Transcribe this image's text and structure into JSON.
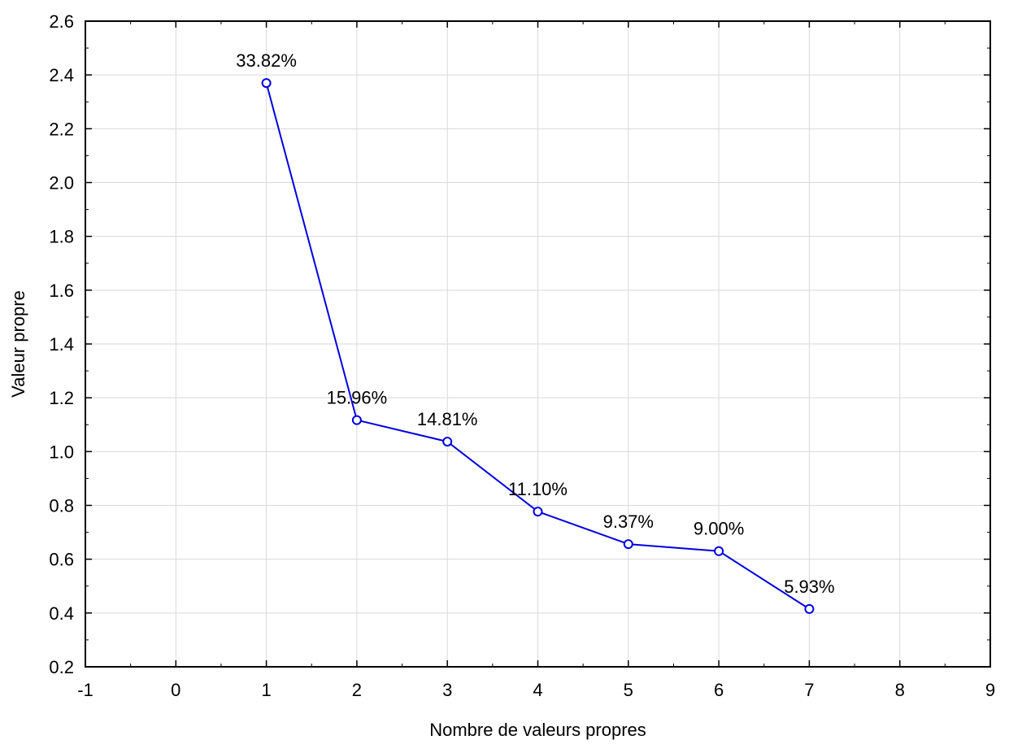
{
  "chart_data": {
    "type": "line",
    "title": "",
    "xlabel": "Nombre de valeurs propres",
    "ylabel": "Valeur propre",
    "xlim": [
      -1,
      9
    ],
    "ylim": [
      0.2,
      2.6
    ],
    "xticks": [
      -1,
      0,
      1,
      2,
      3,
      4,
      5,
      6,
      7,
      8,
      9
    ],
    "yticks": [
      0.2,
      0.4,
      0.6,
      0.8,
      1.0,
      1.2,
      1.4,
      1.6,
      1.8,
      2.0,
      2.2,
      2.4,
      2.6
    ],
    "xtick_labels": [
      "-1",
      "0",
      "1",
      "2",
      "3",
      "4",
      "5",
      "6",
      "7",
      "8",
      "9"
    ],
    "ytick_labels": [
      "0.2",
      "0.4",
      "0.6",
      "0.8",
      "1.0",
      "1.2",
      "1.4",
      "1.6",
      "1.8",
      "2.0",
      "2.2",
      "2.4",
      "2.6"
    ],
    "grid": true,
    "series": [
      {
        "x": [
          1,
          2,
          3,
          4,
          5,
          6,
          7
        ],
        "values": [
          2.37,
          1.117,
          1.037,
          0.777,
          0.656,
          0.63,
          0.415
        ],
        "labels": [
          "33.82%",
          "15.96%",
          "14.81%",
          "11.10%",
          "9.37%",
          "9.00%",
          "5.93%"
        ],
        "color": "#0000e0",
        "marker": "circle"
      }
    ]
  }
}
